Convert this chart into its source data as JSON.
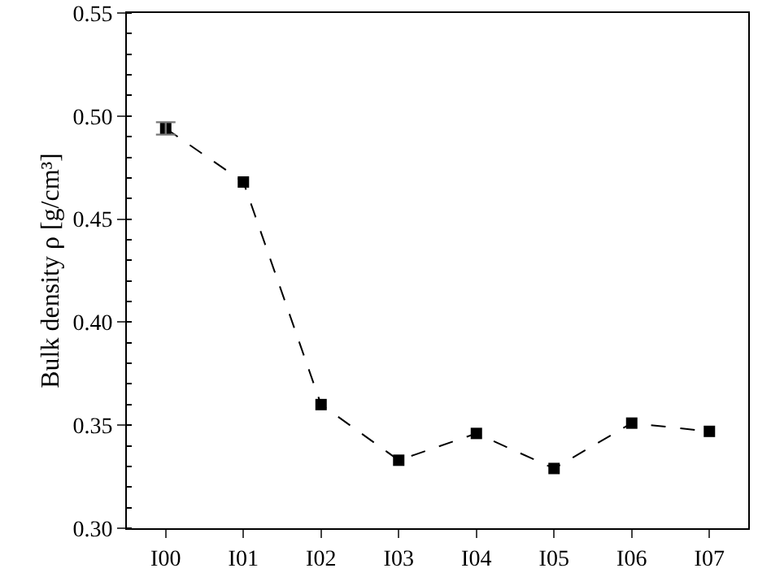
{
  "chart_data": {
    "type": "line",
    "ylabel": "Bulk density ρ [g/cm³]",
    "categories": [
      "I00",
      "I01",
      "I02",
      "I03",
      "I04",
      "I05",
      "I06",
      "I07"
    ],
    "series": [
      {
        "color": "#000000",
        "values": [
          0.494,
          0.468,
          0.36,
          0.333,
          0.346,
          0.329,
          0.351,
          0.347
        ],
        "errors": [
          0.003,
          null,
          null,
          null,
          null,
          null,
          null,
          null
        ]
      }
    ],
    "ylim": [
      0.3,
      0.55
    ],
    "yticks": [
      {
        "value": 0.3,
        "label": "0.30"
      },
      {
        "value": 0.35,
        "label": "0.35"
      },
      {
        "value": 0.4,
        "label": "0.40"
      },
      {
        "value": 0.45,
        "label": "0.45"
      },
      {
        "value": 0.5,
        "label": "0.50"
      },
      {
        "value": 0.55,
        "label": "0.55"
      }
    ],
    "marker": "square",
    "line_style": "dashed"
  }
}
